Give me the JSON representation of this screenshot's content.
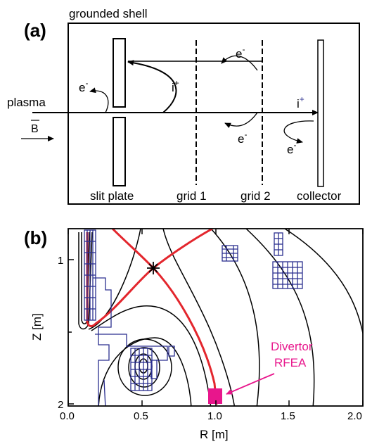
{
  "panel_a": {
    "label": "(a)",
    "shell_label": "grounded shell",
    "plasma_label": "plasma",
    "b_label": "B",
    "slit_label": "slit plate",
    "grid1_label": "grid 1",
    "grid2_label": "grid 2",
    "collector_label": "collector",
    "electron": "e",
    "ion": "i",
    "minus": "-",
    "plus": "+"
  },
  "panel_b": {
    "label": "(b)",
    "xlabel": "R [m]",
    "ylabel": "Z [m]",
    "x_ticks": [
      "0.0",
      "0.5",
      "1.0",
      "1.5",
      "2.0"
    ],
    "y_ticks": [
      "1",
      "2"
    ],
    "annotation": [
      "Divertor",
      "RFEA"
    ],
    "colors": {
      "separatrix": "#e3262d",
      "structure": "#2b2f8f",
      "rfea": "#e8168c"
    }
  }
}
